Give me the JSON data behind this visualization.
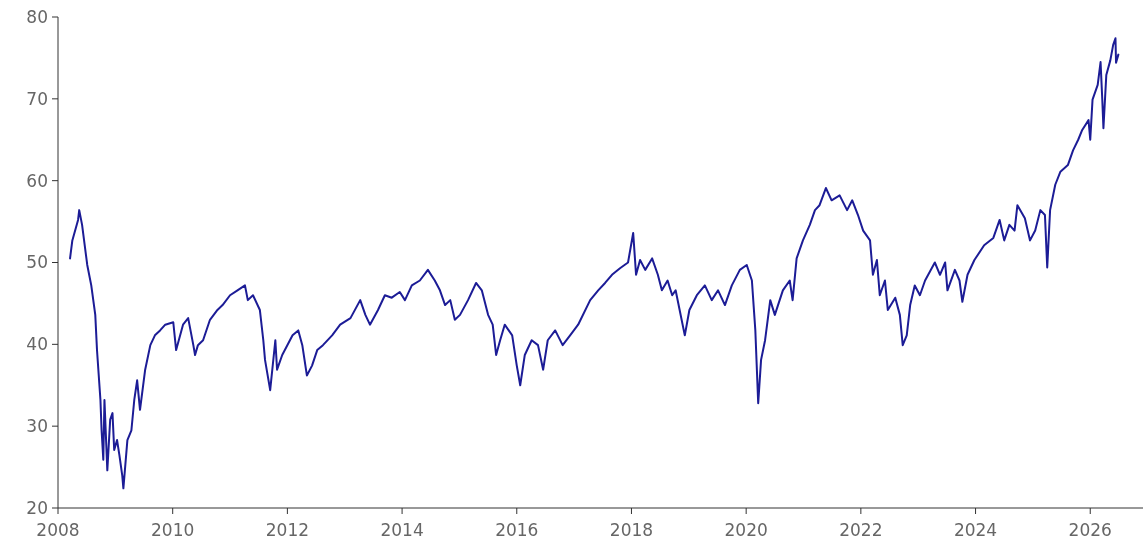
{
  "chart_data": {
    "type": "line",
    "x": [
      2008.21,
      2008.25,
      2008.35,
      2008.37,
      2008.42,
      2008.51,
      2008.58,
      2008.65,
      2008.68,
      2008.74,
      2008.76,
      2008.79,
      2008.81,
      2008.86,
      2008.91,
      2008.95,
      2008.98,
      2009.03,
      2009.07,
      2009.12,
      2009.14,
      2009.21,
      2009.28,
      2009.33,
      2009.38,
      2009.43,
      2009.52,
      2009.61,
      2009.69,
      2009.78,
      2009.87,
      2010.01,
      2010.06,
      2010.18,
      2010.27,
      2010.36,
      2010.39,
      2010.44,
      2010.53,
      2010.65,
      2010.78,
      2010.87,
      2011.0,
      2011.13,
      2011.26,
      2011.31,
      2011.4,
      2011.52,
      2011.58,
      2011.61,
      2011.7,
      2011.79,
      2011.82,
      2011.91,
      2012.09,
      2012.19,
      2012.26,
      2012.34,
      2012.43,
      2012.52,
      2012.62,
      2012.78,
      2012.92,
      2013.1,
      2013.27,
      2013.36,
      2013.44,
      2013.58,
      2013.7,
      2013.82,
      2013.96,
      2014.05,
      2014.17,
      2014.31,
      2014.45,
      2014.57,
      2014.66,
      2014.75,
      2014.84,
      2014.92,
      2015.01,
      2015.15,
      2015.29,
      2015.39,
      2015.5,
      2015.58,
      2015.64,
      2015.71,
      2015.79,
      2015.92,
      2016.0,
      2016.06,
      2016.14,
      2016.26,
      2016.37,
      2016.46,
      2016.54,
      2016.67,
      2016.8,
      2016.93,
      2017.07,
      2017.28,
      2017.42,
      2017.54,
      2017.66,
      2017.8,
      2017.94,
      2018.03,
      2018.08,
      2018.15,
      2018.24,
      2018.36,
      2018.46,
      2018.53,
      2018.63,
      2018.71,
      2018.77,
      2018.84,
      2018.93,
      2019.01,
      2019.14,
      2019.28,
      2019.4,
      2019.51,
      2019.63,
      2019.75,
      2019.89,
      2020.01,
      2020.1,
      2020.16,
      2020.21,
      2020.26,
      2020.33,
      2020.42,
      2020.5,
      2020.64,
      2020.76,
      2020.81,
      2020.88,
      2020.99,
      2021.11,
      2021.2,
      2021.28,
      2021.39,
      2021.49,
      2021.63,
      2021.76,
      2021.85,
      2021.95,
      2022.04,
      2022.16,
      2022.21,
      2022.28,
      2022.33,
      2022.42,
      2022.47,
      2022.6,
      2022.68,
      2022.73,
      2022.8,
      2022.86,
      2022.94,
      2023.03,
      2023.12,
      2023.29,
      2023.38,
      2023.47,
      2023.51,
      2023.64,
      2023.72,
      2023.77,
      2023.86,
      2023.98,
      2024.15,
      2024.31,
      2024.42,
      2024.5,
      2024.59,
      2024.68,
      2024.73,
      2024.86,
      2024.95,
      2025.04,
      2025.13,
      2025.21,
      2025.25,
      2025.3,
      2025.39,
      2025.48,
      2025.61,
      2025.7,
      2025.79,
      2025.86,
      2025.97,
      2026.0,
      2026.04,
      2026.13,
      2026.18,
      2026.21,
      2026.23,
      2026.28,
      2026.35,
      2026.4,
      2026.44,
      2026.45,
      2026.49
    ],
    "series": [
      {
        "color": "#1c1c96",
        "values": [
          50.5,
          52.7,
          55.2,
          56.4,
          54.6,
          49.7,
          47.2,
          43.6,
          39.3,
          33.2,
          29.5,
          25.9,
          33.2,
          24.6,
          30.8,
          31.6,
          27.1,
          28.3,
          26.5,
          24.0,
          22.4,
          28.3,
          29.5,
          33.2,
          35.6,
          32.0,
          36.9,
          39.9,
          41.1,
          41.7,
          42.4,
          42.7,
          39.3,
          42.4,
          43.2,
          39.9,
          38.7,
          39.9,
          40.5,
          43.0,
          44.2,
          44.8,
          46.0,
          46.6,
          47.2,
          45.4,
          46.0,
          44.2,
          40.5,
          38.1,
          34.4,
          40.5,
          36.9,
          38.7,
          41.1,
          41.7,
          39.9,
          36.2,
          37.4,
          39.3,
          39.9,
          41.1,
          42.4,
          43.2,
          45.4,
          43.6,
          42.4,
          44.2,
          46.0,
          45.7,
          46.4,
          45.4,
          47.2,
          47.8,
          49.1,
          47.8,
          46.6,
          44.8,
          45.4,
          43.0,
          43.6,
          45.4,
          47.5,
          46.6,
          43.6,
          42.4,
          38.7,
          40.5,
          42.4,
          41.1,
          37.4,
          35.0,
          38.7,
          40.5,
          39.9,
          36.9,
          40.5,
          41.7,
          39.9,
          41.1,
          42.4,
          45.4,
          46.6,
          47.5,
          48.5,
          49.3,
          50.0,
          53.6,
          48.5,
          50.3,
          49.1,
          50.5,
          48.5,
          46.6,
          47.8,
          46.0,
          46.6,
          44.2,
          41.1,
          44.2,
          46.0,
          47.2,
          45.4,
          46.6,
          44.8,
          47.2,
          49.1,
          49.7,
          47.8,
          41.7,
          32.8,
          38.1,
          40.5,
          45.4,
          43.6,
          46.6,
          47.8,
          45.4,
          50.5,
          52.7,
          54.6,
          56.4,
          57.0,
          59.1,
          57.6,
          58.2,
          56.4,
          57.6,
          55.8,
          53.9,
          52.7,
          48.5,
          50.3,
          46.0,
          47.8,
          44.2,
          45.7,
          43.6,
          39.9,
          41.1,
          44.8,
          47.2,
          46.0,
          47.8,
          50.0,
          48.5,
          50.0,
          46.6,
          49.1,
          47.8,
          45.2,
          48.5,
          50.3,
          52.1,
          53.0,
          55.2,
          52.7,
          54.6,
          53.9,
          57.0,
          55.4,
          52.7,
          53.9,
          56.4,
          55.8,
          49.4,
          56.4,
          59.5,
          61.1,
          61.9,
          63.7,
          65.0,
          66.2,
          67.4,
          65.0,
          69.9,
          71.7,
          74.5,
          69.9,
          66.4,
          72.9,
          74.7,
          76.6,
          77.4,
          74.4,
          75.4
        ]
      }
    ],
    "xlim": [
      2008,
      2026.92
    ],
    "xticks": [
      2008,
      2010,
      2012,
      2014,
      2016,
      2018,
      2020,
      2022,
      2024,
      2026
    ],
    "ylim": [
      20,
      80
    ],
    "yticks": [
      20,
      30,
      40,
      50,
      60,
      70,
      80
    ],
    "grid": false,
    "marker": "none",
    "line_style": "solid"
  }
}
